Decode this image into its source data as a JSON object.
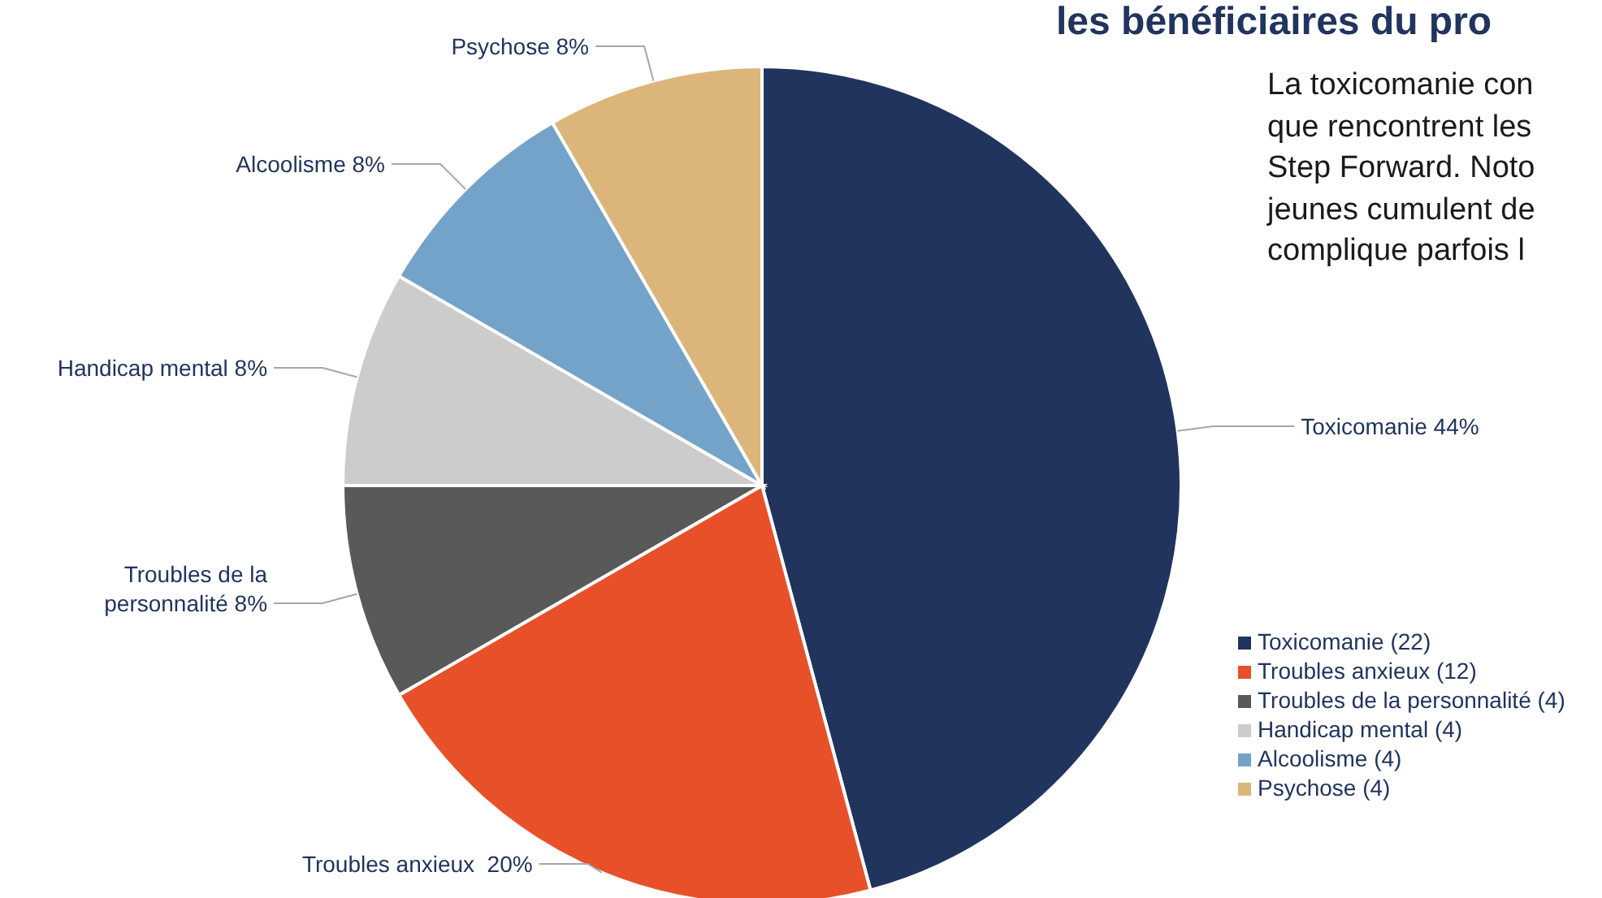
{
  "chart_data": {
    "type": "pie",
    "title": "les bénéficiaires du pro",
    "annotations": [
      "La toxicomanie con",
      "que rencontrent les",
      "Step Forward. Noto",
      "jeunes cumulent de",
      "complique parfois l"
    ],
    "categories": [
      "Toxicomanie (22)",
      "Troubles anxieux (12)",
      "Troubles de la personnalité (4)",
      "Handicap mental (4)",
      "Alcoolisme (4)",
      "Psychose (4)"
    ],
    "values": [
      44,
      20,
      8,
      8,
      8,
      8
    ],
    "value_labels": [
      "Toxicomanie 44%",
      "Troubles anxieux  20%",
      "Troubles de la personnalité 8%",
      "Handicap mental 8%",
      "Alcoolisme 8%",
      "Psychose 8%"
    ],
    "colors": [
      "#21345e",
      "#e8502a",
      "#595959",
      "#cccccc",
      "#74a3c9",
      "#dcb57b"
    ],
    "legend": "bottom right"
  }
}
